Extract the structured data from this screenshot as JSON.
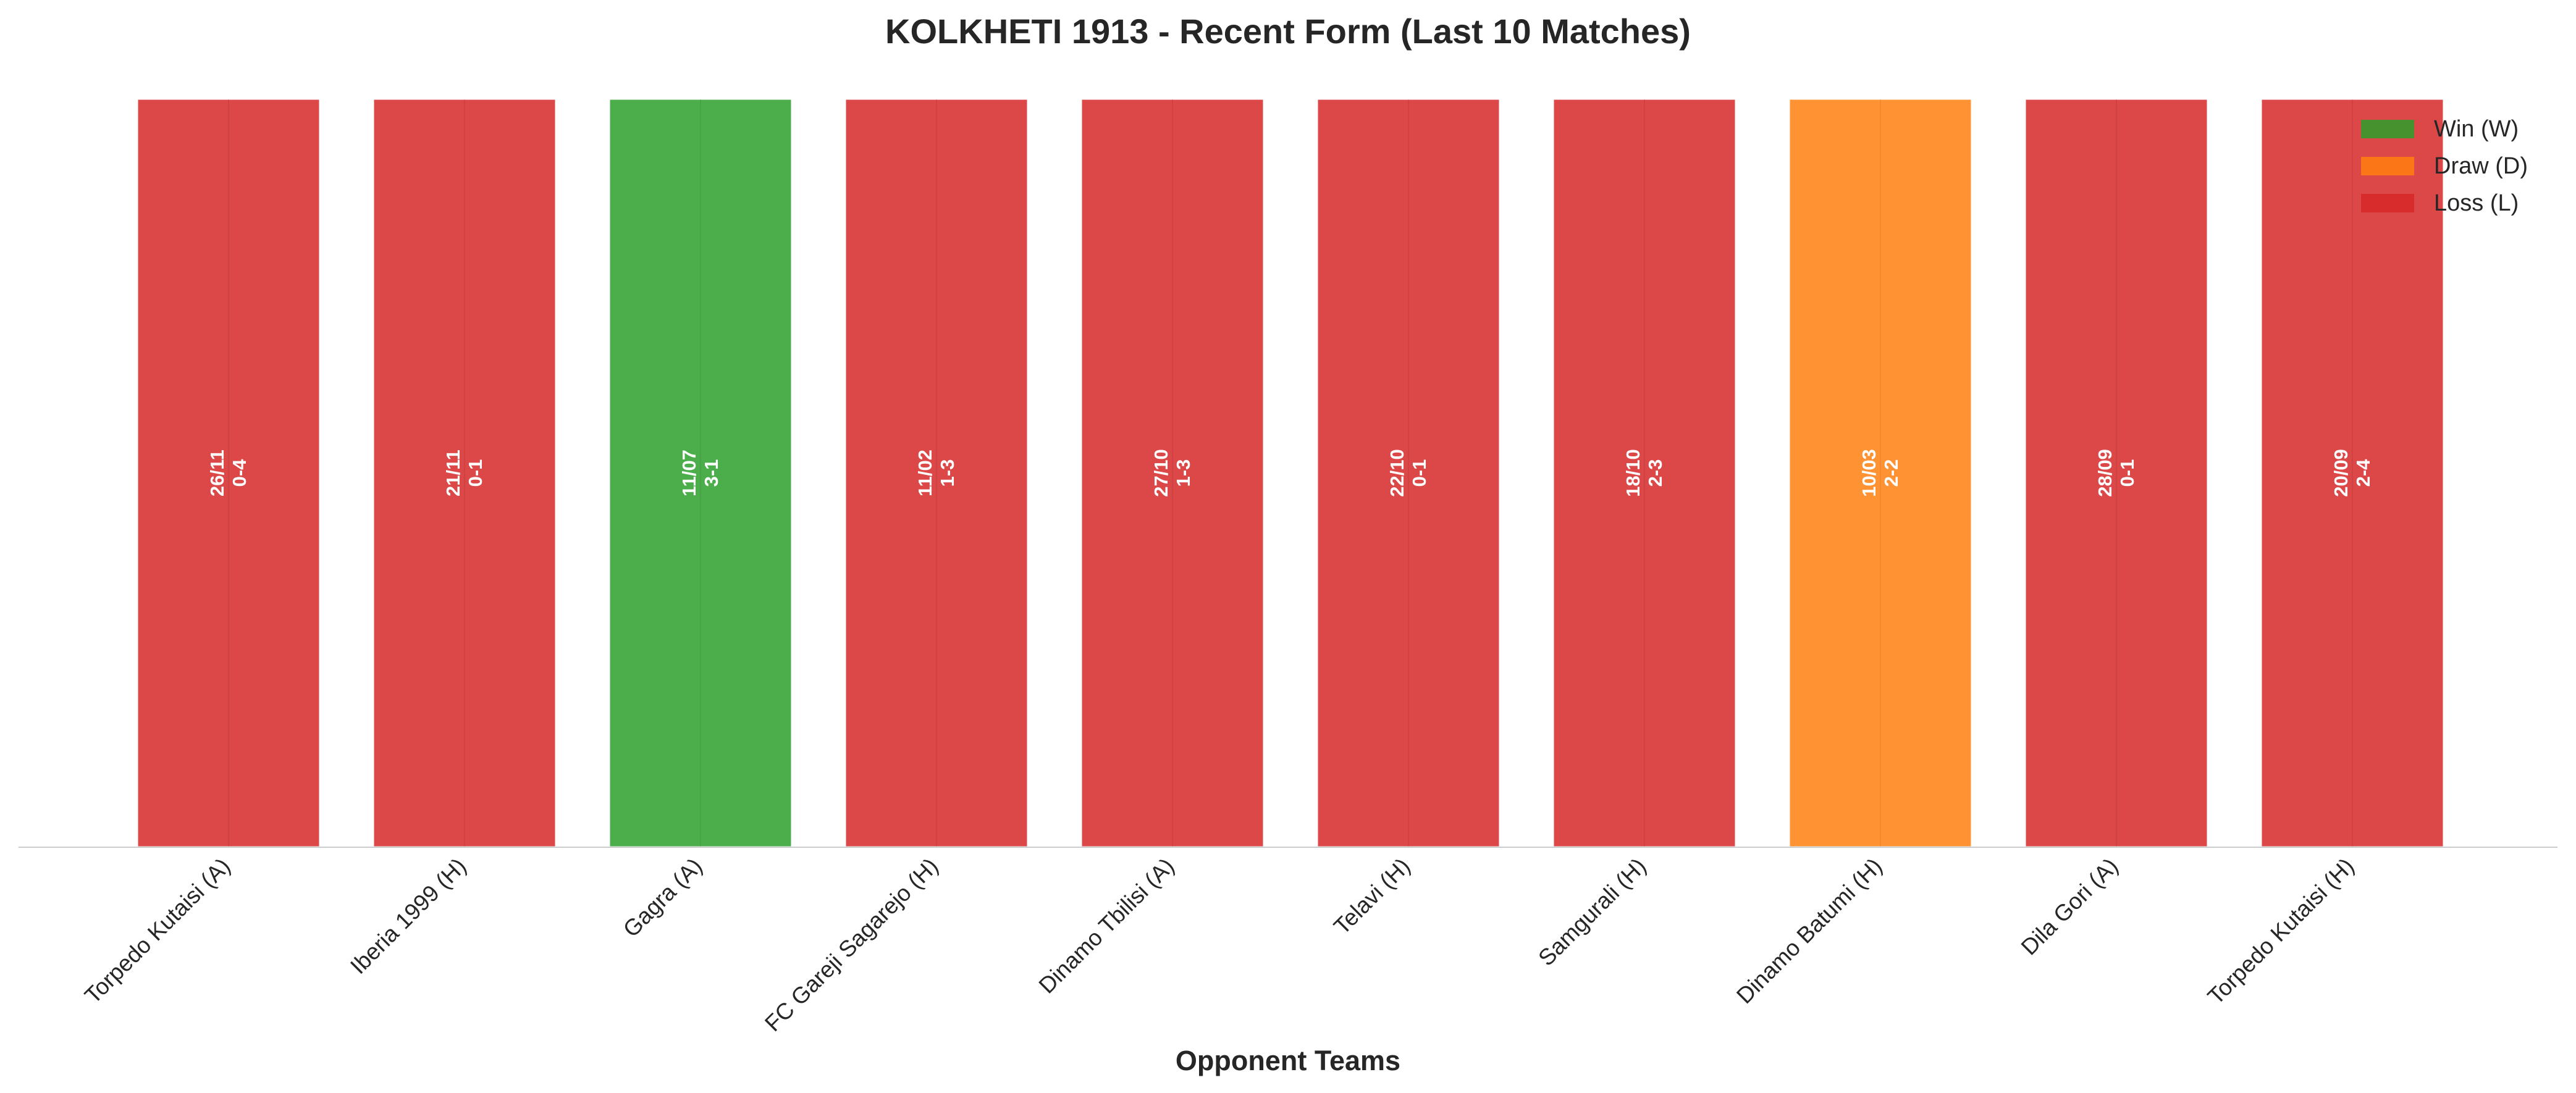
{
  "chart_data": {
    "type": "bar",
    "title": "KOLKHETI 1913 - Recent Form (Last 10 Matches)",
    "xlabel": "Opponent Teams",
    "ylabel": "",
    "grid": false,
    "legend_position": "top-right",
    "categories": [
      "Torpedo Kutaisi (A)",
      "Iberia 1999 (H)",
      "Gagra (A)",
      "FC Gareji Sagarejo (H)",
      "Dinamo Tbilisi (A)",
      "Telavi (H)",
      "Samgurali (H)",
      "Dinamo Batumi (H)",
      "Dila Gori (A)",
      "Torpedo Kutaisi (H)"
    ],
    "values": [
      1,
      1,
      1,
      1,
      1,
      1,
      1,
      1,
      1,
      1
    ],
    "results": [
      "L",
      "L",
      "W",
      "L",
      "L",
      "L",
      "L",
      "D",
      "L",
      "L"
    ],
    "dates": [
      "26/11",
      "21/11",
      "11/07",
      "11/02",
      "27/10",
      "22/10",
      "18/10",
      "10/03",
      "28/09",
      "20/09"
    ],
    "scores": [
      "0-4",
      "0-1",
      "3-1",
      "1-3",
      "1-3",
      "0-1",
      "2-3",
      "2-2",
      "0-1",
      "2-4"
    ],
    "legend": [
      {
        "key": "W",
        "label": "Win (W)",
        "color": "#2ca02c"
      },
      {
        "key": "D",
        "label": "Draw (D)",
        "color": "#ff7f0e"
      },
      {
        "key": "L",
        "label": "Loss (L)",
        "color": "#d62728"
      }
    ],
    "bar_opacity": 0.85
  }
}
